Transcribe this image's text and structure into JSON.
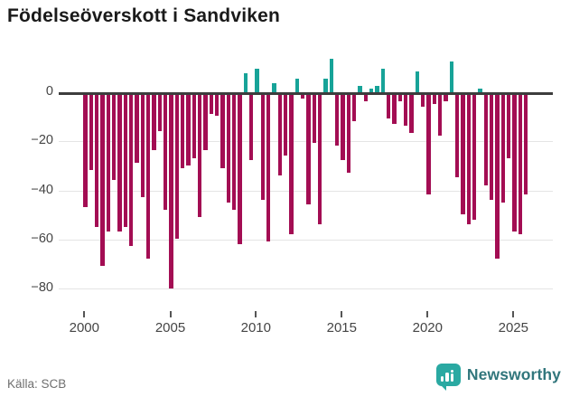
{
  "title": "Födelseöverskott i Sandviken",
  "source": "Källa: SCB",
  "branding": {
    "name": "Newsworthy",
    "logo_icon": "bar-chart-speech-bubble"
  },
  "colors": {
    "negative": "#a30d53",
    "positive": "#17a398",
    "zero_line": "#3d3d3d",
    "grid": "#e4e4e4",
    "brand_teal": "#2aa9a2",
    "brand_text": "#31767c"
  },
  "chart_data": {
    "type": "bar",
    "title": "Födelseöverskott i Sandviken",
    "xlabel": "",
    "ylabel": "",
    "ylim": [
      -85,
      15
    ],
    "grid": true,
    "x_start_year": 2000,
    "periods_per_year": 3,
    "x_tick_labels": [
      "2000",
      "2005",
      "2010",
      "2015",
      "2020",
      "2025"
    ],
    "y_tick_labels": [
      "0",
      "−20",
      "−40",
      "−60",
      "−80"
    ],
    "y_tick_values": [
      0,
      -20,
      -40,
      -60,
      -80
    ],
    "values": [
      -46,
      -31,
      -54,
      -70,
      -56,
      -35,
      -56,
      -54,
      -62,
      -28,
      -42,
      -67,
      -23,
      -15,
      -47,
      -79,
      -59,
      -30,
      -29,
      -26,
      -50,
      -23,
      -8,
      -9,
      -30,
      -44,
      -47,
      -61,
      8,
      -27,
      10,
      -43,
      -60,
      4,
      -33,
      -25,
      -57,
      6,
      -2,
      -45,
      -20,
      -53,
      6,
      14,
      -21,
      -27,
      -32,
      -11,
      3,
      -3,
      2,
      3,
      10,
      -10,
      -12,
      -3,
      -13,
      -16,
      9,
      -5,
      -41,
      -4,
      -17,
      -3,
      13,
      -34,
      -49,
      -53,
      -51,
      2,
      -37,
      -43,
      -67,
      -44,
      -26,
      -56,
      -57,
      -41
    ]
  }
}
